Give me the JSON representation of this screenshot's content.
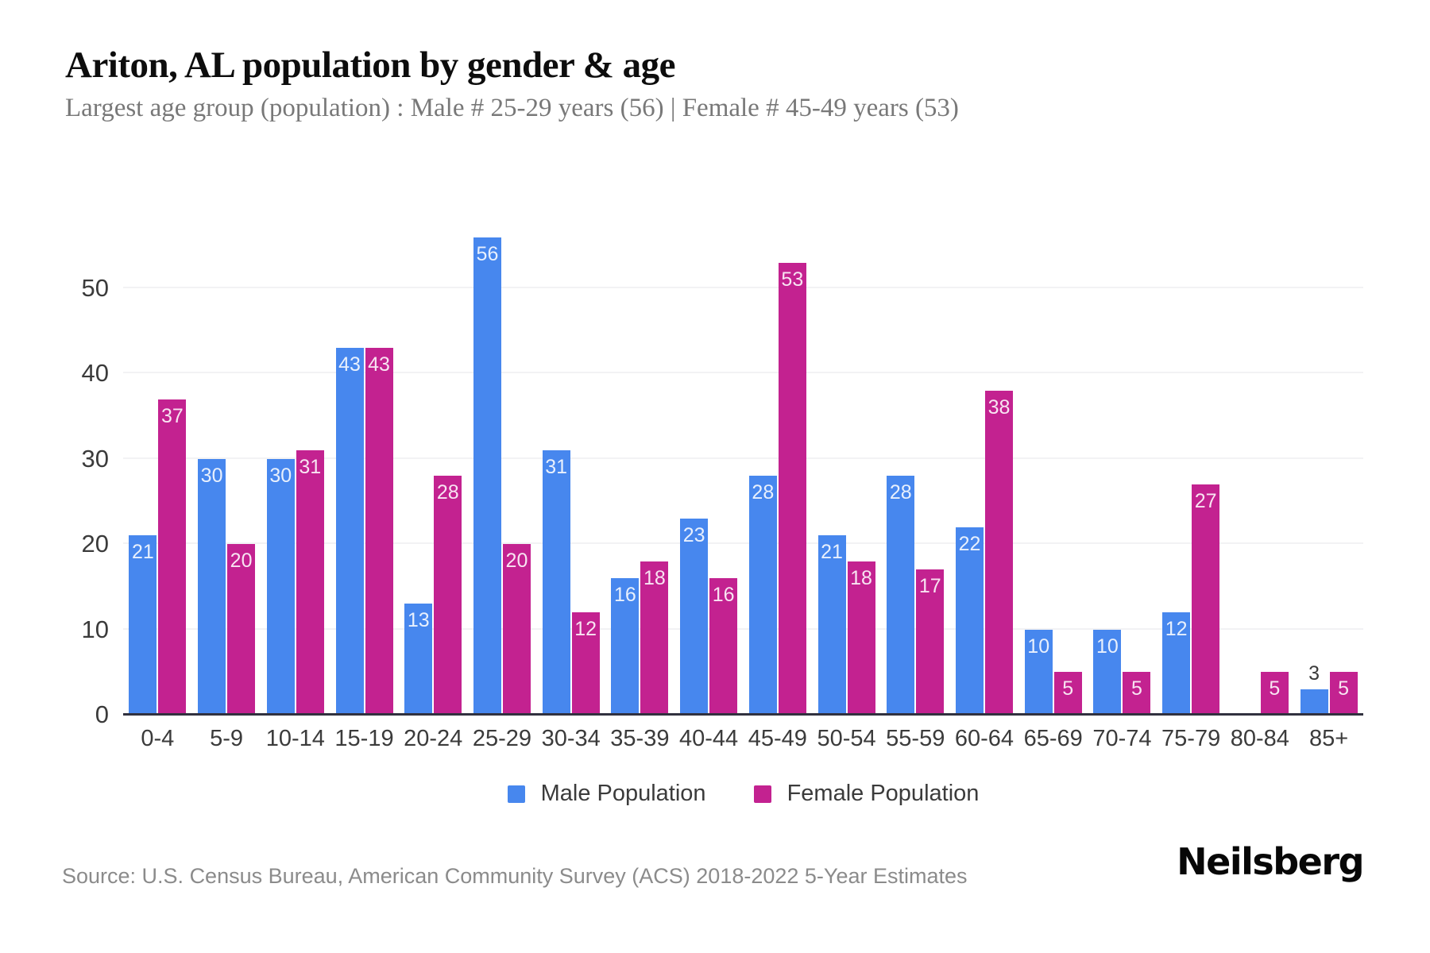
{
  "header": {
    "title": "Ariton, AL population by gender & age",
    "subtitle": "Largest age group (population) : Male # 25-29 years (56) | Female # 45-49 years (53)"
  },
  "chart_data": {
    "type": "bar",
    "title": "Ariton, AL population by gender & age",
    "categories": [
      "0-4",
      "5-9",
      "10-14",
      "15-19",
      "20-24",
      "25-29",
      "30-34",
      "35-39",
      "40-44",
      "45-49",
      "50-54",
      "55-59",
      "60-64",
      "65-69",
      "70-74",
      "75-79",
      "80-84",
      "85+"
    ],
    "series": [
      {
        "name": "Male Population",
        "color": "#4787ee",
        "values": [
          21,
          30,
          30,
          43,
          13,
          56,
          31,
          16,
          23,
          28,
          21,
          28,
          22,
          10,
          10,
          12,
          0,
          3
        ]
      },
      {
        "name": "Female Population",
        "color": "#c32290",
        "values": [
          37,
          20,
          31,
          43,
          28,
          20,
          12,
          18,
          16,
          53,
          18,
          17,
          38,
          5,
          5,
          27,
          5,
          5
        ]
      }
    ],
    "xlabel": "",
    "ylabel": "",
    "yticks": [
      0,
      10,
      20,
      30,
      40,
      50
    ],
    "ylim": [
      0,
      60
    ],
    "grid": true,
    "legend_position": "bottom"
  },
  "footer": {
    "source": "Source: U.S. Census Bureau, American Community Survey (ACS) 2018-2022 5-Year Estimates",
    "brand": "Neilsberg"
  }
}
